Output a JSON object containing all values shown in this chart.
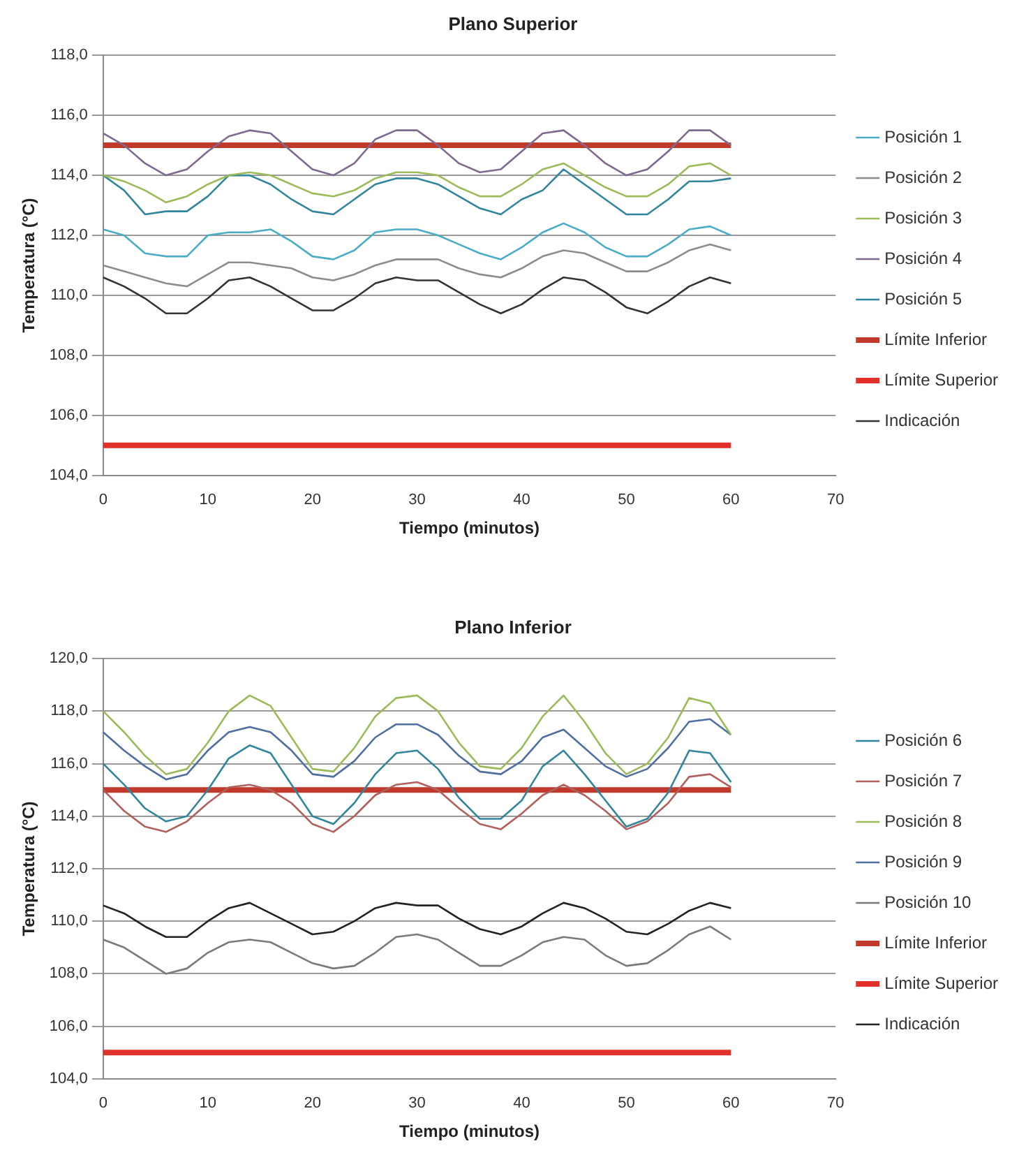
{
  "chart_data": [
    {
      "type": "line",
      "title": "Plano Superior",
      "xlabel": "Tiempo (minutos)",
      "ylabel": "Temperatura (°C)",
      "xlim": [
        0,
        70
      ],
      "xticks": [
        0,
        10,
        20,
        30,
        40,
        50,
        60,
        70
      ],
      "ylim": [
        104,
        118
      ],
      "yticks": [
        {
          "value": 104,
          "label": "104,0"
        },
        {
          "value": 106,
          "label": "106,0"
        },
        {
          "value": 108,
          "label": "108,0"
        },
        {
          "value": 110,
          "label": "110,0"
        },
        {
          "value": 112,
          "label": "112,0"
        },
        {
          "value": 114,
          "label": "114,0"
        },
        {
          "value": 116,
          "label": "116,0"
        },
        {
          "value": 118,
          "label": "118,0"
        }
      ],
      "grid": "y",
      "legend": "right",
      "marker": "none",
      "line_style": "solid",
      "x": [
        0,
        2,
        4,
        6,
        8,
        10,
        12,
        14,
        16,
        18,
        20,
        22,
        24,
        26,
        28,
        30,
        32,
        34,
        36,
        38,
        40,
        42,
        44,
        46,
        48,
        50,
        52,
        54,
        56,
        58,
        60
      ],
      "series": [
        {
          "name": "Posición 1",
          "color": "#4bacc6",
          "values": [
            112.2,
            112.0,
            111.4,
            111.3,
            111.3,
            112.0,
            112.1,
            112.1,
            112.2,
            111.8,
            111.3,
            111.2,
            111.5,
            112.1,
            112.2,
            112.2,
            112.0,
            111.7,
            111.4,
            111.2,
            111.6,
            112.1,
            112.4,
            112.1,
            111.6,
            111.3,
            111.3,
            111.7,
            112.2,
            112.3,
            112.0
          ]
        },
        {
          "name": "Posición 2",
          "color": "#8c8c8c",
          "values": [
            111.0,
            110.8,
            110.6,
            110.4,
            110.3,
            110.7,
            111.1,
            111.1,
            111.0,
            110.9,
            110.6,
            110.5,
            110.7,
            111.0,
            111.2,
            111.2,
            111.2,
            110.9,
            110.7,
            110.6,
            110.9,
            111.3,
            111.5,
            111.4,
            111.1,
            110.8,
            110.8,
            111.1,
            111.5,
            111.7,
            111.5
          ]
        },
        {
          "name": "Posición 3",
          "color": "#9bbb59",
          "values": [
            114.0,
            113.8,
            113.5,
            113.1,
            113.3,
            113.7,
            114.0,
            114.1,
            114.0,
            113.7,
            113.4,
            113.3,
            113.5,
            113.9,
            114.1,
            114.1,
            114.0,
            113.6,
            113.3,
            113.3,
            113.7,
            114.2,
            114.4,
            114.0,
            113.6,
            113.3,
            113.3,
            113.7,
            114.3,
            114.4,
            114.0
          ]
        },
        {
          "name": "Posición 4",
          "color": "#7f6a8f",
          "values": [
            115.4,
            115.0,
            114.4,
            114.0,
            114.2,
            114.8,
            115.3,
            115.5,
            115.4,
            114.8,
            114.2,
            114.0,
            114.4,
            115.2,
            115.5,
            115.5,
            115.0,
            114.4,
            114.1,
            114.2,
            114.8,
            115.4,
            115.5,
            115.0,
            114.4,
            114.0,
            114.2,
            114.8,
            115.5,
            115.5,
            115.0
          ]
        },
        {
          "name": "Posición 5",
          "color": "#31859c",
          "values": [
            114.0,
            113.5,
            112.7,
            112.8,
            112.8,
            113.3,
            114.0,
            114.0,
            113.7,
            113.2,
            112.8,
            112.7,
            113.2,
            113.7,
            113.9,
            113.9,
            113.7,
            113.3,
            112.9,
            112.7,
            113.2,
            113.5,
            114.2,
            113.7,
            113.2,
            112.7,
            112.7,
            113.2,
            113.8,
            113.8,
            113.9
          ]
        },
        {
          "name": "Límite Inferior",
          "color": "#c0392b",
          "values": [
            115,
            115,
            115,
            115,
            115,
            115,
            115,
            115,
            115,
            115,
            115,
            115,
            115,
            115,
            115,
            115,
            115,
            115,
            115,
            115,
            115,
            115,
            115,
            115,
            115,
            115,
            115,
            115,
            115,
            115,
            115
          ]
        },
        {
          "name": "Límite Superior",
          "color": "#e0302a",
          "values": [
            105,
            105,
            105,
            105,
            105,
            105,
            105,
            105,
            105,
            105,
            105,
            105,
            105,
            105,
            105,
            105,
            105,
            105,
            105,
            105,
            105,
            105,
            105,
            105,
            105,
            105,
            105,
            105,
            105,
            105,
            105
          ]
        },
        {
          "name": "Indicación",
          "color": "#333333",
          "values": [
            110.6,
            110.3,
            109.9,
            109.4,
            109.4,
            109.9,
            110.5,
            110.6,
            110.3,
            109.9,
            109.5,
            109.5,
            109.9,
            110.4,
            110.6,
            110.5,
            110.5,
            110.1,
            109.7,
            109.4,
            109.7,
            110.2,
            110.6,
            110.5,
            110.1,
            109.6,
            109.4,
            109.8,
            110.3,
            110.6,
            110.4
          ]
        }
      ]
    },
    {
      "type": "line",
      "title": "Plano Inferior",
      "xlabel": "Tiempo (minutos)",
      "ylabel": "Temperatura (°C)",
      "xlim": [
        0,
        70
      ],
      "xticks": [
        0,
        10,
        20,
        30,
        40,
        50,
        60,
        70
      ],
      "ylim": [
        104,
        120
      ],
      "yticks": [
        {
          "value": 104,
          "label": "104,0"
        },
        {
          "value": 106,
          "label": "106,0"
        },
        {
          "value": 108,
          "label": "108,0"
        },
        {
          "value": 110,
          "label": "110,0"
        },
        {
          "value": 112,
          "label": "112,0"
        },
        {
          "value": 114,
          "label": "114,0"
        },
        {
          "value": 116,
          "label": "116,0"
        },
        {
          "value": 118,
          "label": "118,0"
        },
        {
          "value": 120,
          "label": "120,0"
        }
      ],
      "grid": "y",
      "legend": "right",
      "marker": "none",
      "line_style": "solid",
      "x": [
        0,
        2,
        4,
        6,
        8,
        10,
        12,
        14,
        16,
        18,
        20,
        22,
        24,
        26,
        28,
        30,
        32,
        34,
        36,
        38,
        40,
        42,
        44,
        46,
        48,
        50,
        52,
        54,
        56,
        58,
        60
      ],
      "series": [
        {
          "name": "Posición 6",
          "color": "#31859c",
          "values": [
            116.0,
            115.2,
            114.3,
            113.8,
            114.0,
            115.0,
            116.2,
            116.7,
            116.4,
            115.2,
            114.0,
            113.7,
            114.5,
            115.6,
            116.4,
            116.5,
            115.8,
            114.7,
            113.9,
            113.9,
            114.6,
            115.9,
            116.5,
            115.6,
            114.6,
            113.6,
            113.9,
            114.9,
            116.5,
            116.4,
            115.3
          ]
        },
        {
          "name": "Posición 7",
          "color": "#b0605d",
          "values": [
            115.0,
            114.2,
            113.6,
            113.4,
            113.8,
            114.5,
            115.1,
            115.2,
            115.0,
            114.5,
            113.7,
            113.4,
            114.0,
            114.8,
            115.2,
            115.3,
            115.0,
            114.3,
            113.7,
            113.5,
            114.1,
            114.8,
            115.2,
            114.8,
            114.2,
            113.5,
            113.8,
            114.5,
            115.5,
            115.6,
            115.1
          ]
        },
        {
          "name": "Posición 8",
          "color": "#9bbb59",
          "values": [
            118.0,
            117.2,
            116.3,
            115.6,
            115.8,
            116.8,
            118.0,
            118.6,
            118.2,
            117.0,
            115.8,
            115.7,
            116.6,
            117.8,
            118.5,
            118.6,
            118.0,
            116.8,
            115.9,
            115.8,
            116.6,
            117.8,
            118.6,
            117.6,
            116.4,
            115.6,
            116.0,
            117.0,
            118.5,
            118.3,
            117.1
          ]
        },
        {
          "name": "Posición 9",
          "color": "#4f6fa0",
          "values": [
            117.2,
            116.5,
            115.9,
            115.4,
            115.6,
            116.5,
            117.2,
            117.4,
            117.2,
            116.5,
            115.6,
            115.5,
            116.1,
            117.0,
            117.5,
            117.5,
            117.1,
            116.3,
            115.7,
            115.6,
            116.1,
            117.0,
            117.3,
            116.6,
            115.9,
            115.5,
            115.8,
            116.6,
            117.6,
            117.7,
            117.1
          ]
        },
        {
          "name": "Posición 10",
          "color": "#7a7a7a",
          "values": [
            109.3,
            109.0,
            108.5,
            108.0,
            108.2,
            108.8,
            109.2,
            109.3,
            109.2,
            108.8,
            108.4,
            108.2,
            108.3,
            108.8,
            109.4,
            109.5,
            109.3,
            108.8,
            108.3,
            108.3,
            108.7,
            109.2,
            109.4,
            109.3,
            108.7,
            108.3,
            108.4,
            108.9,
            109.5,
            109.8,
            109.3
          ]
        },
        {
          "name": "Límite Inferior",
          "color": "#c0392b",
          "values": [
            115,
            115,
            115,
            115,
            115,
            115,
            115,
            115,
            115,
            115,
            115,
            115,
            115,
            115,
            115,
            115,
            115,
            115,
            115,
            115,
            115,
            115,
            115,
            115,
            115,
            115,
            115,
            115,
            115,
            115,
            115
          ]
        },
        {
          "name": "Límite Superior",
          "color": "#e0302a",
          "values": [
            105,
            105,
            105,
            105,
            105,
            105,
            105,
            105,
            105,
            105,
            105,
            105,
            105,
            105,
            105,
            105,
            105,
            105,
            105,
            105,
            105,
            105,
            105,
            105,
            105,
            105,
            105,
            105,
            105,
            105,
            105
          ]
        },
        {
          "name": "Indicación",
          "color": "#222222",
          "values": [
            110.6,
            110.3,
            109.8,
            109.4,
            109.4,
            110.0,
            110.5,
            110.7,
            110.3,
            109.9,
            109.5,
            109.6,
            110.0,
            110.5,
            110.7,
            110.6,
            110.6,
            110.1,
            109.7,
            109.5,
            109.8,
            110.3,
            110.7,
            110.5,
            110.1,
            109.6,
            109.5,
            109.9,
            110.4,
            110.7,
            110.5
          ]
        }
      ]
    }
  ]
}
